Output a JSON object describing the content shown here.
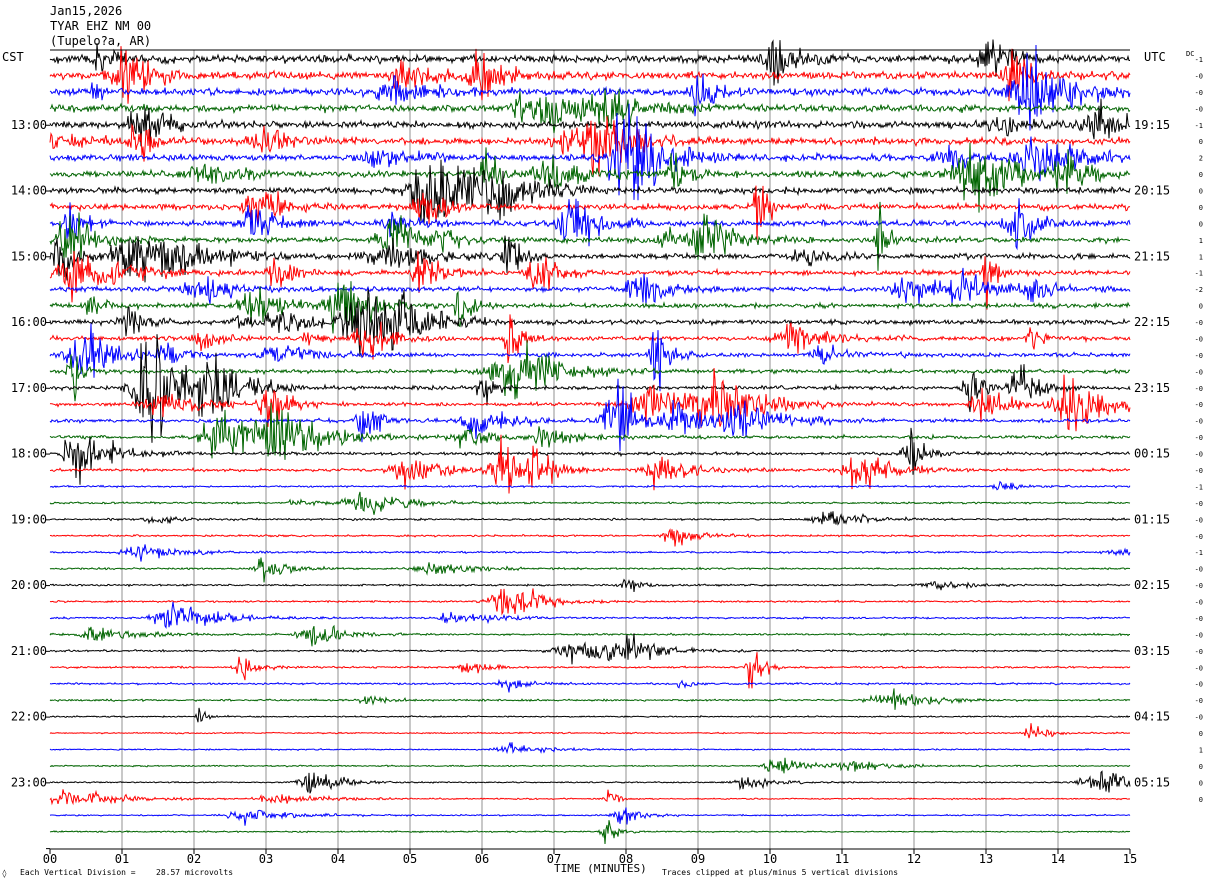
{
  "header": {
    "date": "Jan15,2026",
    "station": "TYAR EHZ NM 00",
    "location": "(Tupelo?a, AR)",
    "left_zone": "CST",
    "right_zone": "UTC",
    "dc_label": "DC"
  },
  "footer": {
    "scale_label": "Each Vertical Division =",
    "scale_value": "28.57 microvolts",
    "x_title": "TIME (MINUTES)",
    "clip_note": "Traces clipped at plus/minus 5 vertical divisions",
    "corner_mark": "◊"
  },
  "chart_data": {
    "type": "line",
    "title": "",
    "xlabel": "TIME (MINUTES)",
    "xlim": [
      0,
      15
    ],
    "x_ticks": [
      "00",
      "01",
      "02",
      "03",
      "04",
      "05",
      "06",
      "07",
      "08",
      "09",
      "10",
      "11",
      "12",
      "13",
      "14",
      "15"
    ],
    "rows": 48,
    "trace_colors": [
      "#000000",
      "#ff0000",
      "#0000ff",
      "#006400"
    ],
    "left_hour_labels": [
      "13:00",
      "14:00",
      "15:00",
      "16:00",
      "17:00",
      "18:00",
      "19:00",
      "20:00",
      "21:00",
      "22:00",
      "23:00"
    ],
    "right_hour_labels": [
      "19:15",
      "20:15",
      "21:15",
      "22:15",
      "23:15",
      "00:15",
      "01:15",
      "02:15",
      "03:15",
      "04:15",
      "05:15"
    ],
    "dc_offsets": [
      "-1",
      "-0",
      "-0",
      "-0",
      "-1",
      "0",
      "2",
      "0",
      "0",
      "0",
      "0",
      "1",
      "1",
      "-1",
      "-2",
      "0",
      "-0",
      "-0",
      "-0",
      "-0",
      "-0",
      "-0",
      "-0",
      "-0",
      "-0",
      "-0",
      "-1",
      "-0",
      "-0",
      "-0",
      "-1",
      "-0",
      "-0",
      "-0",
      "-0",
      "-0",
      "-0",
      "-0",
      "-0",
      "-0",
      "-0",
      "0",
      "1",
      "0",
      "0",
      "0"
    ]
  }
}
